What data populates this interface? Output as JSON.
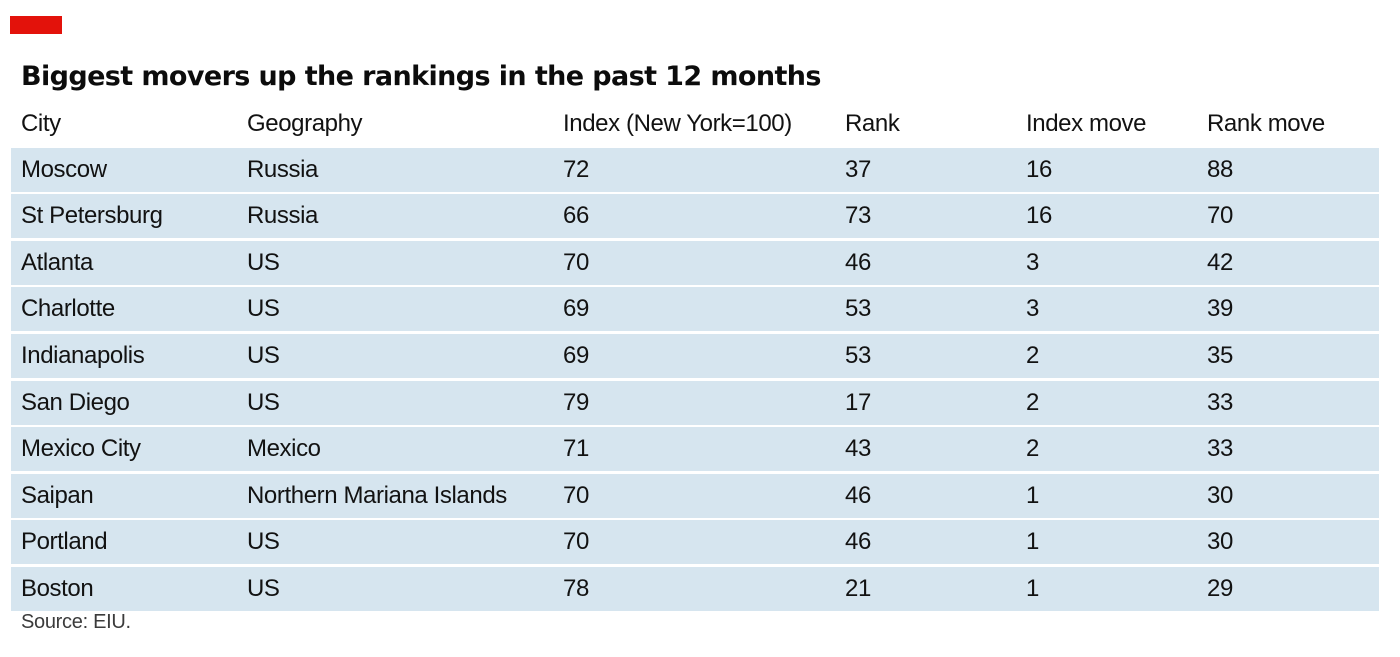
{
  "accent_color": "#e3120b",
  "row_color": "#d6e5ef",
  "title": "Biggest movers up the rankings in the past 12 months",
  "table": {
    "headers": [
      "City",
      "Geography",
      "Index (New York=100)",
      "Rank",
      "Index move",
      "Rank move"
    ],
    "rows": [
      [
        "Moscow",
        "Russia",
        "72",
        "37",
        "16",
        "88"
      ],
      [
        "St Petersburg",
        "Russia",
        "66",
        "73",
        "16",
        "70"
      ],
      [
        "Atlanta",
        "US",
        "70",
        "46",
        "3",
        "42"
      ],
      [
        "Charlotte",
        "US",
        "69",
        "53",
        "3",
        "39"
      ],
      [
        "Indianapolis",
        "US",
        "69",
        "53",
        "2",
        "35"
      ],
      [
        "San Diego",
        "US",
        "79",
        "17",
        "2",
        "33"
      ],
      [
        "Mexico City",
        "Mexico",
        "71",
        "43",
        "2",
        "33"
      ],
      [
        "Saipan",
        "Northern Mariana Islands",
        "70",
        "46",
        "1",
        "30"
      ],
      [
        "Portland",
        "US",
        "70",
        "46",
        "1",
        "30"
      ],
      [
        "Boston",
        "US",
        "78",
        "21",
        "1",
        "29"
      ]
    ]
  },
  "source": "Source: EIU."
}
